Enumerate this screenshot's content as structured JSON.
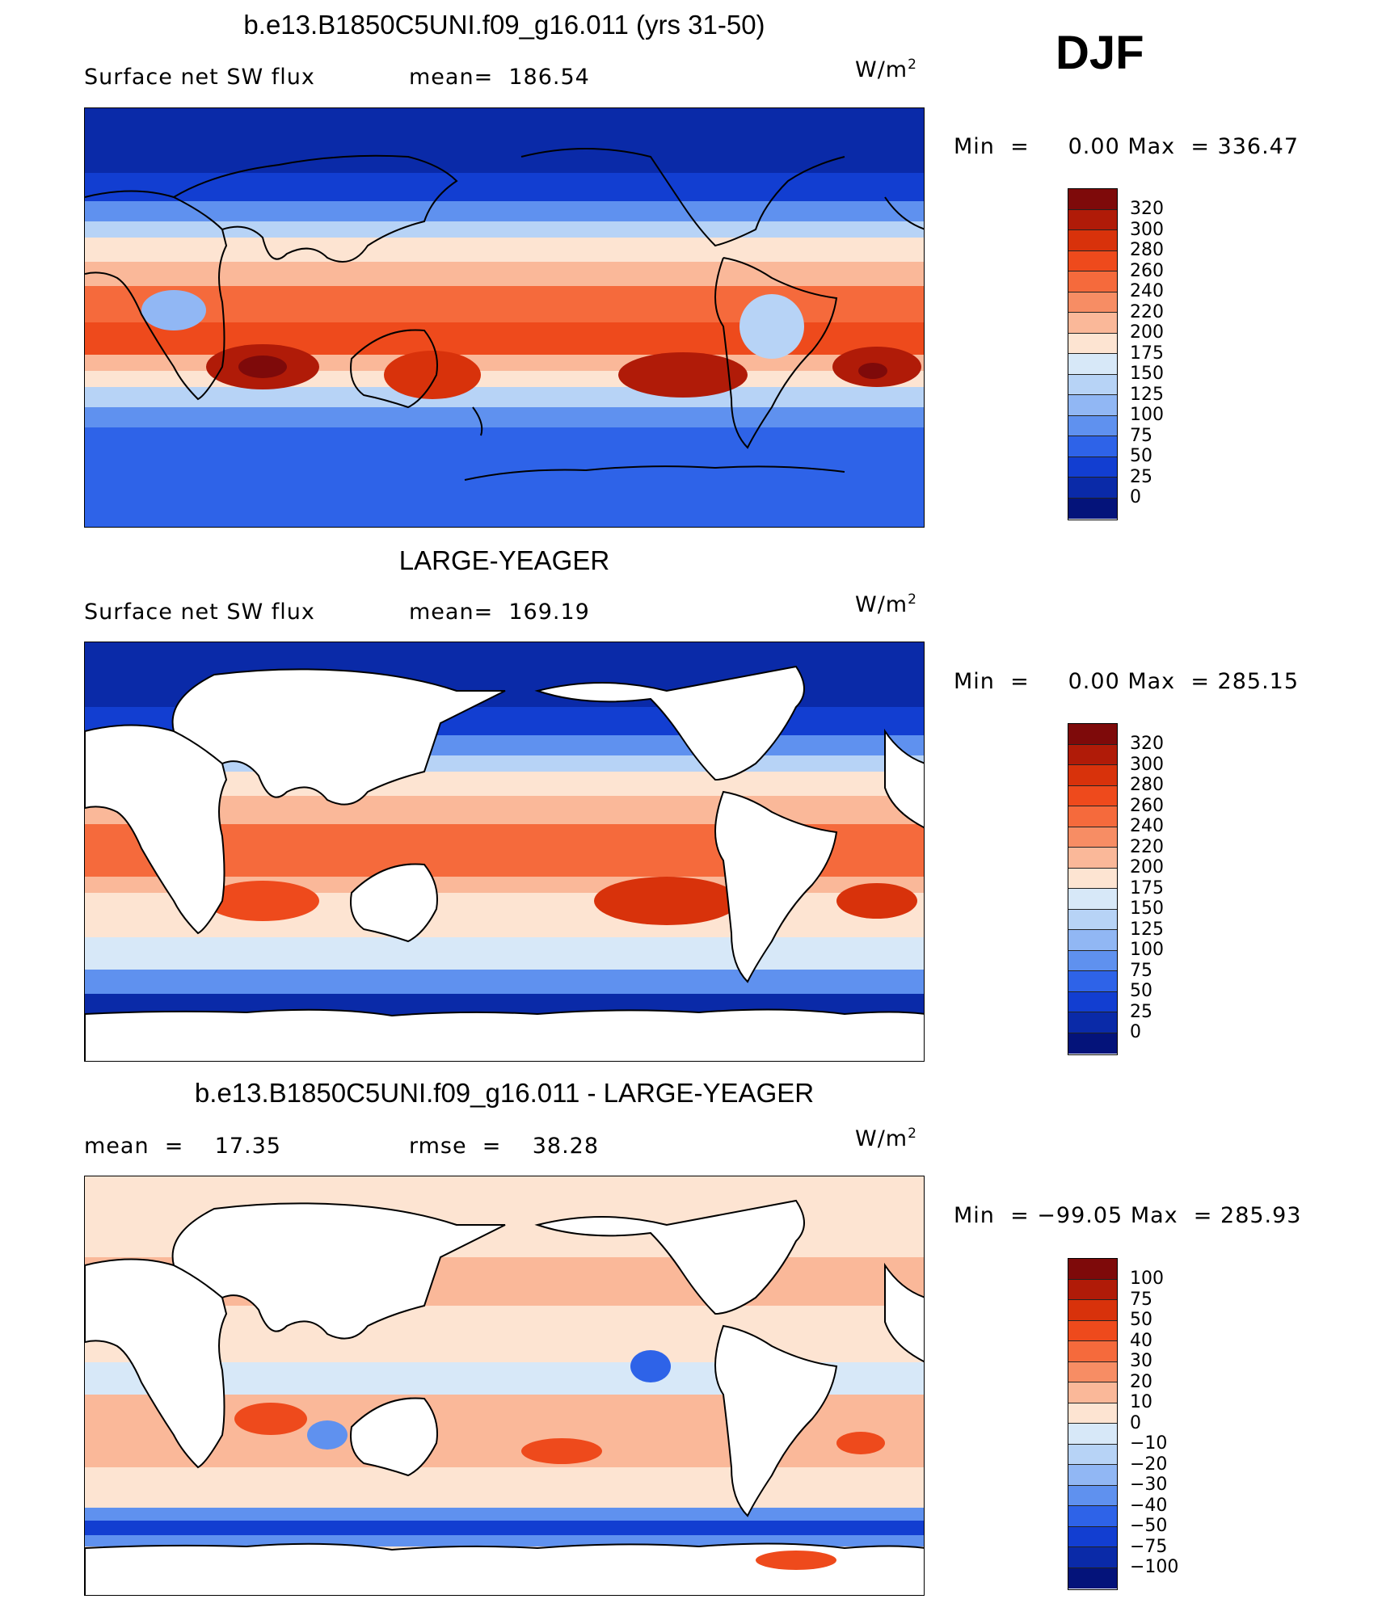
{
  "season": "DJF",
  "units_base": "W/m",
  "units_exp": "2",
  "panels": [
    {
      "title": "b.e13.B1850C5UNI.f09_g16.011 (yrs 31-50)",
      "stat_left": "Surface net SW flux",
      "stat_right": "mean=  186.54",
      "min_label": "Min  =",
      "min_value": "0.00",
      "max_label": "Max  =",
      "max_value": "336.47",
      "levels": [
        "320",
        "300",
        "280",
        "260",
        "240",
        "220",
        "200",
        "175",
        "150",
        "125",
        "100",
        "75",
        "50",
        "25",
        "0"
      ],
      "land_masked": false
    },
    {
      "title": "LARGE-YEAGER",
      "stat_left": "Surface net SW flux",
      "stat_right": "mean=  169.19",
      "min_label": "Min  =",
      "min_value": "0.00",
      "max_label": "Max  =",
      "max_value": "285.15",
      "levels": [
        "320",
        "300",
        "280",
        "260",
        "240",
        "220",
        "200",
        "175",
        "150",
        "125",
        "100",
        "75",
        "50",
        "25",
        "0"
      ],
      "land_masked": true
    },
    {
      "title": "b.e13.B1850C5UNI.f09_g16.011 - LARGE-YEAGER",
      "stat_left": "mean  =    17.35",
      "stat_right": "rmse  =    38.28",
      "min_label": "Min  =",
      "min_value": "−99.05",
      "max_label": "Max  =",
      "max_value": "285.93",
      "levels": [
        "100",
        "75",
        "50",
        "40",
        "30",
        "20",
        "10",
        "0",
        "−10",
        "−20",
        "−30",
        "−40",
        "−50",
        "−75",
        "−100"
      ],
      "land_masked": true
    }
  ],
  "colors": {
    "scale": [
      "#7e0a0a",
      "#b01b08",
      "#d8320b",
      "#ee4a1c",
      "#f56a3c",
      "#f78d64",
      "#fab899",
      "#fde4d2",
      "#d7e8f8",
      "#b7d3f6",
      "#91b7f4",
      "#5f91ef",
      "#2e63e8",
      "#123ed1",
      "#0a2aa8",
      "#04137a"
    ],
    "land": "#ffffff",
    "coast": "#000000"
  }
}
